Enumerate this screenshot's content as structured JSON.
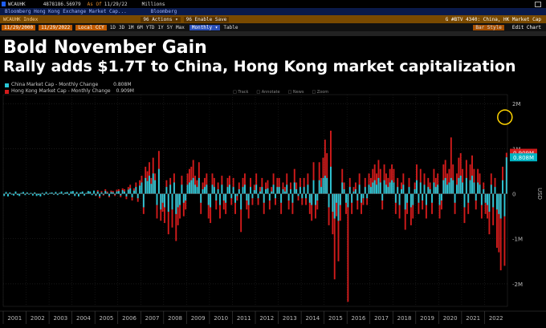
{
  "header": {
    "ticker": "WCAUHK",
    "last_value": "4878186.56979",
    "as_of_label": "As Of",
    "as_of_date": "11/29/22",
    "units": "Millions",
    "description": "Bloomberg Hong Kong Exchange Market Cap...",
    "source": "Bloomberg",
    "security": "WCAUHK Index",
    "actions_label": "96 Actions ▾",
    "enable_save_label": "96 Enable Save",
    "chart_name": "G #BTV 4340: China, HK Market Cap",
    "start_date": "11/29/2000",
    "end_date": "11/29/2022",
    "currency": "Local CCY",
    "periods": [
      "1D",
      "3D",
      "1M",
      "6M",
      "YTD",
      "1Y",
      "5Y",
      "Max"
    ],
    "frequency": "Monthly ▾",
    "table_label": "Table",
    "line_type": "Bar Style",
    "edit_chart": "Edit Chart"
  },
  "toolbar": [
    "Track",
    "Annotate",
    "News",
    "Zoom"
  ],
  "title": "Bold November Gain",
  "subtitle": "Rally adds $1.7T to China, Hong Kong market capitalization",
  "chart_data": {
    "type": "bar",
    "title": "Bold November Gain",
    "subtitle": "Rally adds $1.7T to China, Hong Kong market capitalization",
    "x_start": "2001-01",
    "x_end": "2022-11",
    "x_tick_labels": [
      "2001",
      "2002",
      "2003",
      "2004",
      "2005",
      "2006",
      "2007",
      "2008",
      "2009",
      "2010",
      "2011",
      "2012",
      "2013",
      "2014",
      "2015",
      "2016",
      "2017",
      "2018",
      "2019",
      "2020",
      "2021",
      "2022"
    ],
    "ylabel": "USD",
    "ylim": [
      -2.5,
      2.2
    ],
    "y_ticks": [
      2,
      1,
      0,
      -1,
      -2
    ],
    "y_tick_labels": [
      "2M",
      "1M",
      "0",
      "-1M",
      "-2M"
    ],
    "legend_position": "top-left",
    "grid": true,
    "series": [
      {
        "name": "China Market Cap - Monthly Change",
        "last_value_label": "0.808M",
        "color": "#29c7d6",
        "values": [
          -0.05,
          0.04,
          -0.06,
          0.03,
          -0.02,
          -0.04,
          0.05,
          -0.03,
          -0.05,
          0.02,
          0.04,
          -0.03,
          0.03,
          -0.02,
          0.02,
          -0.04,
          0.03,
          -0.05,
          -0.03,
          -0.06,
          0.02,
          -0.03,
          0.04,
          -0.02,
          0.02,
          0.03,
          -0.02,
          0.04,
          -0.03,
          0.02,
          0.05,
          -0.02,
          0.03,
          0.04,
          -0.03,
          0.05,
          0.06,
          -0.05,
          0.04,
          -0.06,
          0.03,
          0.05,
          -0.04,
          0.02,
          0.06,
          0.05,
          -0.03,
          0.07,
          -0.04,
          0.05,
          -0.06,
          0.03,
          -0.02,
          0.06,
          0.02,
          -0.05,
          0.04,
          0.03,
          -0.02,
          0.05,
          0.06,
          -0.04,
          0.08,
          0.05,
          -0.06,
          0.09,
          0.12,
          -0.08,
          0.07,
          0.15,
          -0.1,
          0.18,
          0.25,
          -0.3,
          0.35,
          0.28,
          0.4,
          0.22,
          0.45,
          0.3,
          -0.25,
          0.55,
          -0.35,
          -0.2,
          -0.3,
          0.15,
          -0.4,
          0.2,
          -0.35,
          0.25,
          -0.45,
          -0.3,
          -0.25,
          0.2,
          -0.2,
          -0.15,
          0.2,
          0.25,
          0.3,
          0.35,
          0.2,
          0.15,
          0.35,
          -0.2,
          0.1,
          0.15,
          0.2,
          -0.25,
          -0.3,
          0.2,
          0.15,
          -0.15,
          0.1,
          -0.25,
          0.2,
          -0.15,
          -0.2,
          0.15,
          0.2,
          -0.1,
          0.15,
          -0.2,
          -0.05,
          0.1,
          -0.35,
          0.15,
          0.2,
          -0.15,
          -0.25,
          0.15,
          -0.1,
          0.08,
          0.2,
          -0.1,
          0.05,
          0.15,
          -0.2,
          0.1,
          0.12,
          -0.15,
          0.05,
          0.2,
          -0.1,
          0.15,
          0.15,
          -0.2,
          0.1,
          0.05,
          0.2,
          -0.15,
          0.1,
          -0.2,
          0.25,
          0.1,
          -0.05,
          0.15,
          -0.1,
          0.15,
          -0.1,
          0.2,
          -0.2,
          -0.25,
          0.3,
          -0.25,
          -0.15,
          0.3,
          0.15,
          0.35,
          0.4,
          0.35,
          -0.3,
          0.6,
          -0.4,
          -0.55,
          -0.2,
          -0.6,
          -0.25,
          0.25,
          0.1,
          -0.2,
          -0.3,
          0.15,
          -0.2,
          0.05,
          0.1,
          -0.15,
          0.2,
          -0.2,
          -0.1,
          0.15,
          -0.1,
          0.2,
          0.15,
          0.25,
          0.3,
          0.2,
          0.35,
          0.25,
          -0.15,
          0.3,
          0.2,
          0.15,
          0.25,
          0.3,
          0.25,
          -0.2,
          0.15,
          -0.25,
          0.1,
          0.2,
          -0.35,
          -0.2,
          0.15,
          -0.3,
          -0.25,
          0.1,
          0.3,
          -0.2,
          0.25,
          -0.15,
          0.2,
          -0.25,
          0.15,
          0.1,
          -0.2,
          0.25,
          0.15,
          0.2,
          -0.25,
          -0.15,
          0.3,
          0.35,
          0.2,
          0.25,
          0.35,
          0.3,
          -0.2,
          0.2,
          0.35,
          0.4,
          0.25,
          -0.3,
          0.35,
          -0.2,
          0.3,
          0.4,
          0.25,
          -0.15,
          0.25,
          0.2,
          -0.25,
          0.1,
          -0.2,
          -0.25,
          -0.4,
          0.2,
          -0.3,
          0.15,
          -0.35,
          -0.45,
          -0.55,
          0.3,
          -0.5,
          0.808
        ]
      },
      {
        "name": "Hong Kong Market Cap - Monthly Change",
        "last_value_label": "0.909M",
        "color": "#d11b1b",
        "values": [
          -0.03,
          0.02,
          -0.04,
          0.02,
          -0.01,
          -0.03,
          0.03,
          -0.02,
          -0.04,
          0.02,
          0.03,
          -0.02,
          0.02,
          -0.01,
          0.01,
          -0.02,
          0.02,
          -0.03,
          -0.02,
          -0.04,
          0.01,
          -0.02,
          0.03,
          -0.01,
          0.02,
          0.02,
          -0.02,
          0.03,
          -0.02,
          0.02,
          0.03,
          -0.01,
          0.02,
          0.03,
          -0.02,
          0.03,
          0.04,
          -0.03,
          0.03,
          -0.04,
          0.02,
          0.03,
          -0.03,
          0.02,
          0.04,
          0.03,
          -0.02,
          0.05,
          -0.05,
          0.08,
          -0.1,
          0.06,
          -0.04,
          0.1,
          0.05,
          -0.08,
          0.07,
          0.06,
          -0.05,
          0.09,
          0.1,
          -0.08,
          0.12,
          0.1,
          -0.12,
          0.15,
          0.2,
          -0.15,
          0.12,
          0.25,
          -0.18,
          0.3,
          0.4,
          -0.45,
          0.6,
          0.5,
          0.7,
          0.35,
          0.8,
          0.45,
          -0.55,
          0.95,
          -0.6,
          -0.4,
          -0.65,
          0.3,
          -0.9,
          0.35,
          -0.75,
          0.45,
          -1.05,
          -0.7,
          -0.55,
          0.4,
          -0.5,
          -0.35,
          0.45,
          0.55,
          0.6,
          0.75,
          0.4,
          0.3,
          0.7,
          -0.45,
          0.25,
          0.35,
          0.45,
          -0.55,
          -0.65,
          0.45,
          0.35,
          -0.35,
          0.25,
          -0.55,
          0.4,
          -0.35,
          -0.45,
          0.35,
          0.4,
          -0.25,
          0.35,
          -0.45,
          -0.15,
          0.25,
          -0.85,
          0.35,
          0.45,
          -0.35,
          -0.55,
          0.35,
          -0.25,
          0.2,
          0.45,
          -0.25,
          0.15,
          0.35,
          -0.45,
          0.25,
          0.3,
          -0.35,
          0.15,
          0.45,
          -0.25,
          0.35,
          0.35,
          -0.45,
          0.25,
          0.15,
          0.45,
          -0.35,
          0.25,
          -0.45,
          0.55,
          0.25,
          -0.15,
          0.35,
          -0.25,
          0.35,
          -0.25,
          0.45,
          -0.45,
          -0.6,
          0.7,
          -0.55,
          -0.35,
          0.7,
          0.35,
          0.8,
          1.2,
          0.9,
          -0.7,
          1.4,
          -0.9,
          -1.9,
          -0.5,
          -1.5,
          -0.6,
          0.55,
          0.25,
          -0.45,
          -2.4,
          0.35,
          -0.45,
          0.15,
          0.25,
          -0.35,
          0.45,
          -0.45,
          -0.25,
          0.35,
          -0.25,
          0.45,
          0.35,
          0.55,
          0.65,
          0.45,
          0.75,
          0.55,
          -0.35,
          0.65,
          0.45,
          0.35,
          0.55,
          0.65,
          0.55,
          -0.45,
          0.35,
          -0.55,
          0.25,
          0.45,
          -0.8,
          -0.45,
          0.35,
          -0.7,
          -0.55,
          0.25,
          0.65,
          -0.45,
          0.55,
          -0.35,
          0.45,
          -0.55,
          0.35,
          0.25,
          -0.45,
          0.55,
          0.35,
          0.45,
          -0.55,
          -0.35,
          0.65,
          0.75,
          0.45,
          0.55,
          1.25,
          0.65,
          -0.45,
          0.45,
          0.8,
          0.9,
          0.55,
          -0.65,
          0.75,
          -0.45,
          0.65,
          0.85,
          0.55,
          -0.35,
          0.55,
          0.45,
          -0.55,
          0.25,
          -0.45,
          -0.55,
          -0.9,
          0.45,
          -0.7,
          0.35,
          -1.2,
          -1.3,
          -1.7,
          0.6,
          -1.6,
          0.909
        ]
      }
    ]
  }
}
